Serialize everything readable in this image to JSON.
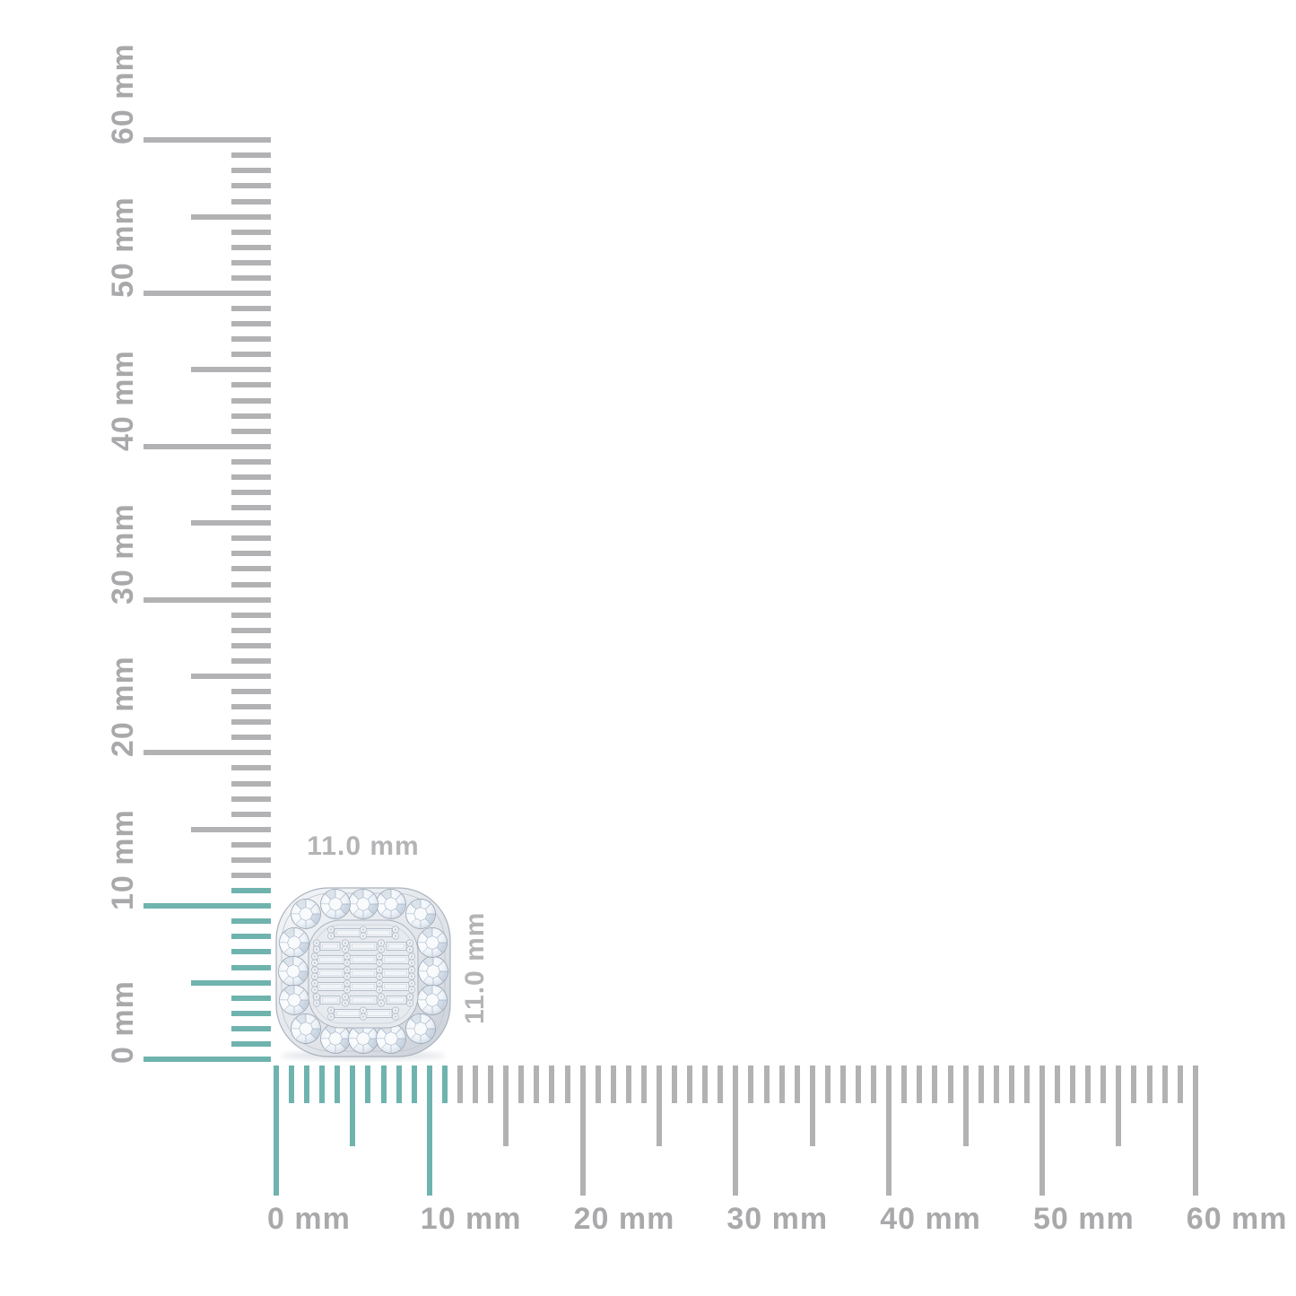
{
  "colors": {
    "background": "#ffffff",
    "highlight_teal": "#6fb3ae",
    "tick_gray": "#b2b2b4",
    "ruler_label_gray": "#a9a9ab",
    "dimension_label_gray": "#b4b4b6"
  },
  "rulers": {
    "unit": "mm",
    "vertical": {
      "min_mm": 0,
      "max_mm": 60,
      "major_step_mm": 10,
      "medium_step_mm": 5,
      "minor_step_mm": 1,
      "highlight_to_mm": 11,
      "labels": [
        "0 mm",
        "10 mm",
        "20 mm",
        "30 mm",
        "40 mm",
        "50 mm",
        "60 mm"
      ]
    },
    "horizontal": {
      "min_mm": 0,
      "max_mm": 60,
      "major_step_mm": 10,
      "medium_step_mm": 5,
      "minor_step_mm": 1,
      "highlight_to_mm": 11,
      "labels": [
        "0 mm",
        "10 mm",
        "20 mm",
        "30 mm",
        "40 mm",
        "50 mm",
        "60 mm"
      ]
    }
  },
  "object": {
    "name": "cushion halo diamond stud with baguette cluster center",
    "width_label": "11.0 mm",
    "height_label": "11.0 mm"
  }
}
